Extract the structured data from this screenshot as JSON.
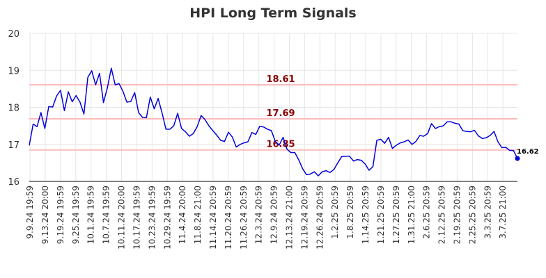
{
  "chart_data": {
    "type": "line",
    "title": "HPI Long Term Signals",
    "ylim": [
      16,
      20
    ],
    "yticks": [
      "16",
      "17",
      "18",
      "19",
      "20"
    ],
    "grid": true,
    "x_tick_labels": [
      "9.9.24 19:59",
      "9.13.24 20:00",
      "9.19.24 19:59",
      "9.25.24 19:59",
      "10.1.24 19:59",
      "10.7.24 19:59",
      "10.11.24 20:00",
      "10.17.24 19:59",
      "10.23.24 19:59",
      "10.29.24 19:59",
      "11.4.24 20:00",
      "11.8.24 21:00",
      "11.14.24 20:59",
      "11.20.24 20:59",
      "11.26.24 20:59",
      "12.3.24 20:59",
      "12.9.24 20:59",
      "12.13.24 21:00",
      "12.19.24 20:59",
      "12.26.24 20:59",
      "1.2.25 20:59",
      "1.8.25 20:59",
      "1.14.25 20:59",
      "1.21.25 20:59",
      "1.27.25 20:59",
      "1.31.25 21:00",
      "2.6.25 20:59",
      "2.12.25 20:59",
      "2.19.25 20:59",
      "2.25.25 20:59",
      "3.3.25 20:59",
      "3.7.25 21:00"
    ],
    "series": [
      {
        "color": "#0000dd",
        "values": [
          16.97,
          17.55,
          17.48,
          17.86,
          17.43,
          18.02,
          18.01,
          18.31,
          18.46,
          17.91,
          18.42,
          18.15,
          18.32,
          18.14,
          17.82,
          18.81,
          18.99,
          18.61,
          18.92,
          18.13,
          18.53,
          19.06,
          18.61,
          18.64,
          18.43,
          18.14,
          18.16,
          18.4,
          17.86,
          17.73,
          17.72,
          18.28,
          17.96,
          18.24,
          17.85,
          17.41,
          17.41,
          17.5,
          17.84,
          17.43,
          17.34,
          17.22,
          17.29,
          17.48,
          17.78,
          17.67,
          17.5,
          17.37,
          17.25,
          17.11,
          17.08,
          17.33,
          17.2,
          16.93,
          17.0,
          17.04,
          17.07,
          17.32,
          17.27,
          17.49,
          17.47,
          17.41,
          17.37,
          17.08,
          16.98,
          17.19,
          16.87,
          16.78,
          16.78,
          16.58,
          16.34,
          16.18,
          16.2,
          16.26,
          16.15,
          16.26,
          16.29,
          16.24,
          16.32,
          16.5,
          16.67,
          16.68,
          16.68,
          16.55,
          16.59,
          16.57,
          16.47,
          16.3,
          16.4,
          17.11,
          17.14,
          17.03,
          17.19,
          16.89,
          16.98,
          17.04,
          17.07,
          17.12,
          17.0,
          17.08,
          17.24,
          17.22,
          17.29,
          17.56,
          17.43,
          17.48,
          17.5,
          17.61,
          17.61,
          17.57,
          17.55,
          17.37,
          17.35,
          17.34,
          17.38,
          17.23,
          17.16,
          17.18,
          17.24,
          17.35,
          17.07,
          16.91,
          16.92,
          16.84,
          16.83,
          16.62
        ]
      }
    ],
    "hlines": [
      {
        "value": 18.61,
        "label": "18.61",
        "color": "#ffbbbb"
      },
      {
        "value": 17.69,
        "label": "17.69",
        "color": "#ffbbbb"
      },
      {
        "value": 16.85,
        "label": "16.85",
        "color": "#ffbbbb"
      }
    ],
    "last_label": "16.62",
    "colors": {
      "line": "#0000dd",
      "hline": "#ffbbbb",
      "hline_label": "#8b0000",
      "grid": "#e6e6e6"
    }
  }
}
